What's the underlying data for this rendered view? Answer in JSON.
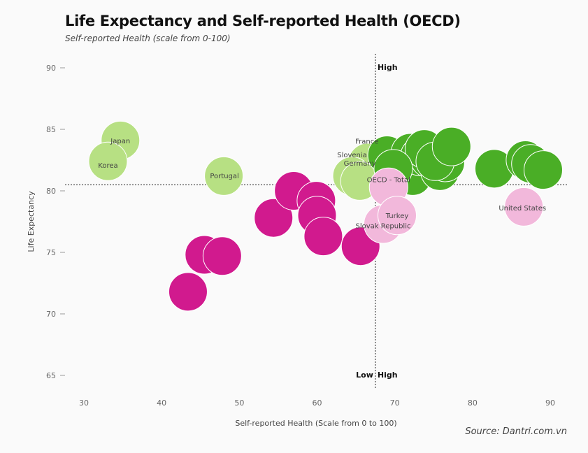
{
  "chart_data": {
    "type": "scatter",
    "title": "Life Expectancy and Self-reported Health (OECD)",
    "subtitle": "Self-reported Health (scale from 0-100)",
    "xlabel": "Self-reported Health (Scale from 0 to 100)",
    "ylabel": "Life Expectancy",
    "source": "Source: Dantri.com.vn",
    "xlim": [
      28,
      92
    ],
    "ylim": [
      63,
      93
    ],
    "xticks": [
      30,
      40,
      50,
      60,
      70,
      80,
      90
    ],
    "yticks": [
      65,
      70,
      75,
      80,
      85,
      90
    ],
    "reference": {
      "x": 67.5,
      "y": 80.5
    },
    "quadrant_labels": {
      "top_high": "High",
      "bottom_low": "Low",
      "bottom_high": "High"
    },
    "colors": {
      "dark_magenta": "#d11a8e",
      "light_pink": "#f2b8db",
      "light_green": "#b7e083",
      "dark_green": "#4aae26"
    },
    "points": [
      {
        "x": 43.4,
        "y": 71.8,
        "color": "dark_magenta",
        "label": ""
      },
      {
        "x": 45.5,
        "y": 74.8,
        "color": "dark_magenta",
        "label": ""
      },
      {
        "x": 47.8,
        "y": 74.7,
        "color": "dark_magenta",
        "label": ""
      },
      {
        "x": 54.4,
        "y": 77.8,
        "color": "dark_magenta",
        "label": ""
      },
      {
        "x": 57.0,
        "y": 80.0,
        "color": "dark_magenta",
        "label": ""
      },
      {
        "x": 59.9,
        "y": 79.2,
        "color": "dark_magenta",
        "label": ""
      },
      {
        "x": 60.0,
        "y": 78.0,
        "color": "dark_magenta",
        "label": ""
      },
      {
        "x": 60.8,
        "y": 76.3,
        "color": "dark_magenta",
        "label": ""
      },
      {
        "x": 65.6,
        "y": 75.5,
        "color": "dark_magenta",
        "label": ""
      },
      {
        "x": 34.7,
        "y": 84.1,
        "color": "light_green",
        "label": "Japan"
      },
      {
        "x": 33.1,
        "y": 82.4,
        "color": "light_green",
        "label": "Korea"
      },
      {
        "x": 48.0,
        "y": 81.2,
        "color": "light_green",
        "label": "Portugal"
      },
      {
        "x": 66.5,
        "y": 82.3,
        "color": "light_green",
        "label": "France"
      },
      {
        "x": 64.5,
        "y": 81.2,
        "color": "light_green",
        "label": "Slovenia"
      },
      {
        "x": 65.5,
        "y": 80.8,
        "color": "light_green",
        "label": "Germany"
      },
      {
        "x": 69.0,
        "y": 82.9,
        "color": "dark_green",
        "label": ""
      },
      {
        "x": 72.3,
        "y": 81.2,
        "color": "dark_green",
        "label": ""
      },
      {
        "x": 72.0,
        "y": 83.1,
        "color": "dark_green",
        "label": ""
      },
      {
        "x": 73.2,
        "y": 82.8,
        "color": "dark_green",
        "label": ""
      },
      {
        "x": 74.5,
        "y": 82.6,
        "color": "dark_green",
        "label": ""
      },
      {
        "x": 75.8,
        "y": 81.6,
        "color": "dark_green",
        "label": ""
      },
      {
        "x": 76.5,
        "y": 82.3,
        "color": "dark_green",
        "label": ""
      },
      {
        "x": 73.8,
        "y": 83.4,
        "color": "dark_green",
        "label": ""
      },
      {
        "x": 75.2,
        "y": 82.4,
        "color": "dark_green",
        "label": ""
      },
      {
        "x": 77.3,
        "y": 83.6,
        "color": "dark_green",
        "label": ""
      },
      {
        "x": 69.8,
        "y": 81.8,
        "color": "dark_green",
        "label": ""
      },
      {
        "x": 82.8,
        "y": 81.8,
        "color": "dark_green",
        "label": ""
      },
      {
        "x": 86.8,
        "y": 82.5,
        "color": "dark_green",
        "label": ""
      },
      {
        "x": 87.5,
        "y": 82.2,
        "color": "dark_green",
        "label": ""
      },
      {
        "x": 89.1,
        "y": 81.7,
        "color": "dark_green",
        "label": ""
      },
      {
        "x": 69.2,
        "y": 80.3,
        "color": "light_pink",
        "label": "OECD - Total"
      },
      {
        "x": 68.5,
        "y": 77.3,
        "color": "light_pink",
        "label": "Slovak Republic"
      },
      {
        "x": 70.3,
        "y": 78.0,
        "color": "light_pink",
        "label": "Turkey"
      },
      {
        "x": 86.6,
        "y": 78.7,
        "color": "light_pink",
        "label": "United States"
      }
    ]
  }
}
